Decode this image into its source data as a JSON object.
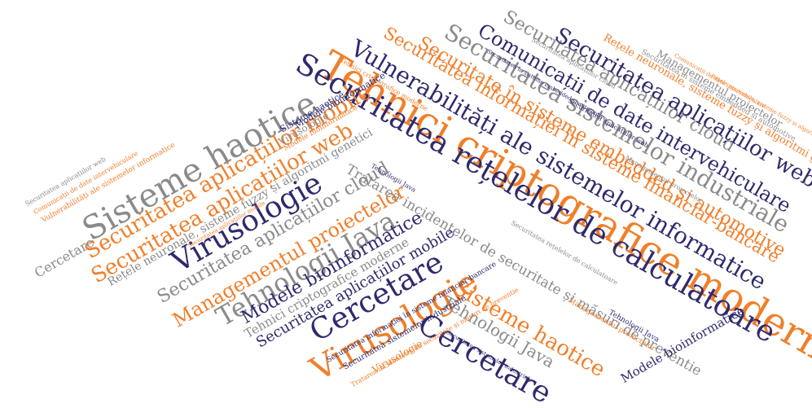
{
  "palette": {
    "navy": "#2e2a6e",
    "orange": "#f07f2b",
    "gray": "#8a8a8a"
  },
  "words": [
    {
      "text": "Tehnici criptografice moderne",
      "color": 1
    },
    {
      "text": "Securitatea rețelelor de calculatoare",
      "color": 0
    },
    {
      "text": "Vulnerabilități ale sistemelor informatice",
      "color": 0
    },
    {
      "text": "Securitatea informației în sisteme financiar-bancare",
      "color": 1
    },
    {
      "text": "Securitate în sisteme embedded și automotive",
      "color": 1
    },
    {
      "text": "Securitatea sistemelor industriale",
      "color": 2
    },
    {
      "text": "Comunicații de date intervehiculare",
      "color": 0
    },
    {
      "text": "Securitatea aplicațiilor cloud",
      "color": 2
    },
    {
      "text": "Securitatea aplicațiilor web",
      "color": 0
    },
    {
      "text": "Rețele neuronale, sisteme fuzzy și algoritmi genetici",
      "color": 1
    },
    {
      "text": "Managementul proiectelor",
      "color": 2
    },
    {
      "text": "Securitatea în sisteme embedded și automotive",
      "color": 2
    },
    {
      "text": "Sisteme haotice",
      "color": 2
    },
    {
      "text": "Securitatea aplicațiilor mobile",
      "color": 1
    },
    {
      "text": "Securitatea aplicațiilor web",
      "color": 1
    },
    {
      "text": "Virusologie",
      "color": 0
    },
    {
      "text": "Rețele neuronale, sisteme fuzzy și algoritmi genetici",
      "color": 2
    },
    {
      "text": "Securitatea aplicațiilor cloud",
      "color": 2
    },
    {
      "text": "Managementul proiectelor",
      "color": 1
    },
    {
      "text": "Tehnologii Java",
      "color": 2
    },
    {
      "text": "Modele bioinformatice",
      "color": 0
    },
    {
      "text": "Tehnici criptografice moderne",
      "color": 2
    },
    {
      "text": "Securitatea aplicațiilor mobile",
      "color": 0
    },
    {
      "text": "Tratarea incidentelor de securitate și măsuri de preventie",
      "color": 2
    },
    {
      "text": "Cercetare",
      "color": 0
    },
    {
      "text": "Virusologie",
      "color": 1
    },
    {
      "text": "Cercetare",
      "color": 0
    },
    {
      "text": "Sisteme haotice",
      "color": 1
    },
    {
      "text": "Tehnologii Java",
      "color": 2
    },
    {
      "text": "Modele bioinformatice",
      "color": 0
    },
    {
      "text": "Cercetare",
      "color": 2
    },
    {
      "text": "Securitatea aplicațiilor web",
      "color": 2
    },
    {
      "text": "Comunicații de date intervehiculare",
      "color": 1
    },
    {
      "text": "Vulnerabilități ale sistemelor informatice",
      "color": 1
    },
    {
      "text": "Virusologie",
      "color": 2
    },
    {
      "text": "Sisteme haotice",
      "color": 0
    },
    {
      "text": "Modele bioinformatice",
      "color": 1
    },
    {
      "text": "Securitatea aplicațiilor mobile",
      "color": 1
    },
    {
      "text": "Securitatea informației în sisteme financiar-bancare",
      "color": 0
    },
    {
      "text": "Securitatea sistemelor industriale",
      "color": 0
    },
    {
      "text": "Virusologie",
      "color": 1
    },
    {
      "text": "Tratarea incidentelor de securitate și măsuri de preventie",
      "color": 1
    },
    {
      "text": "Securitatea sistemelor industriale",
      "color": 0
    },
    {
      "text": "Tehnici criptografice moderne",
      "color": 1
    },
    {
      "text": "Tehnologii Java",
      "color": 0
    },
    {
      "text": "Securitatea rețelelor de calculatoare",
      "color": 2
    },
    {
      "text": "Managementul proiectelor",
      "color": 1
    },
    {
      "text": "Modele bioinformatice",
      "color": 0
    },
    {
      "text": "Securitatea aplicațiilor cloud",
      "color": 2
    },
    {
      "text": "Securitatea aplicațiilor web",
      "color": 0
    },
    {
      "text": "Managementul proiectelor",
      "color": 2
    },
    {
      "text": "Securitatea în sisteme embedded și automotive",
      "color": 0
    },
    {
      "text": "Rețele neuronale, sisteme fuzzy și algoritmi genetici",
      "color": 1
    },
    {
      "text": "Comunicații de date intervehiculare",
      "color": 1
    },
    {
      "text": "Tehnologii Java",
      "color": 0
    }
  ]
}
